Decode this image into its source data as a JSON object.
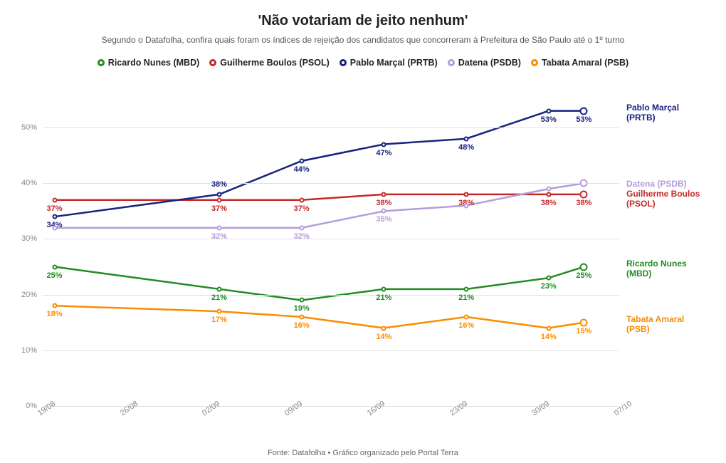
{
  "title": "'Não votariam de jeito nenhum'",
  "subtitle": "Segundo o Datafolha, confira quais foram os índices de rejeição dos candidatos que concorreram à Prefeitura de São Paulo até o 1º turno",
  "footer": "Fonte: Datafolha • Gráfico organizado pelo Portal Terra",
  "chart": {
    "type": "line",
    "background_color": "#ffffff",
    "grid_color": "#e0e0e0",
    "axis_label_color": "#888888",
    "title_fontsize": 20,
    "subtitle_fontsize": 12,
    "legend_fontsize": 12.5,
    "point_label_fontsize": 11,
    "end_label_fontsize": 12,
    "line_width": 2.5,
    "marker_size": 7,
    "last_marker_size": 11,
    "marker_border_width": 2.5,
    "ylim": [
      0,
      55
    ],
    "ytick_step": 10,
    "yticks": [
      0,
      10,
      20,
      30,
      40,
      50
    ],
    "x_positions": [
      1,
      15,
      22,
      29,
      36,
      43,
      46
    ],
    "x_range": [
      0,
      49
    ],
    "xticks": [
      {
        "pos": 0,
        "label": "19/08"
      },
      {
        "pos": 7,
        "label": "26/08"
      },
      {
        "pos": 14,
        "label": "02/09"
      },
      {
        "pos": 21,
        "label": "09/09"
      },
      {
        "pos": 28,
        "label": "16/09"
      },
      {
        "pos": 35,
        "label": "23/09"
      },
      {
        "pos": 42,
        "label": "30/09"
      },
      {
        "pos": 49,
        "label": "07/10"
      }
    ],
    "series": [
      {
        "name": "Ricardo Nunes (MBD)",
        "color": "#228B22",
        "values": [
          25,
          21,
          19,
          21,
          21,
          23,
          25
        ],
        "label_offsets": [
          "below",
          "below",
          "below",
          "below",
          "below",
          "below",
          "below"
        ],
        "end_label_lines": [
          "Ricardo Nunes",
          "(MBD)"
        ]
      },
      {
        "name": "Guilherme Boulos (PSOL)",
        "color": "#c62828",
        "values": [
          37,
          37,
          37,
          38,
          38,
          38,
          38
        ],
        "label_offsets": [
          "below",
          "below",
          "below",
          "below",
          "below",
          "below",
          "below"
        ],
        "end_label_lines": [
          "Guilherme Boulos",
          "(PSOL)"
        ]
      },
      {
        "name": "Pablo Marçal (PRTB)",
        "color": "#1a237e",
        "values": [
          34,
          38,
          44,
          47,
          48,
          53,
          53
        ],
        "label_offsets": [
          "below",
          "above",
          "below",
          "below",
          "below",
          "below",
          "below"
        ],
        "end_label_lines": [
          "Pablo Marçal",
          "(PRTB)"
        ]
      },
      {
        "name": "Datena (PSDB)",
        "color": "#b39ddb",
        "values": [
          32,
          32,
          32,
          35,
          36,
          39,
          40
        ],
        "label_offsets": [
          "none",
          "below",
          "below",
          "below",
          "none",
          "none",
          "none"
        ],
        "end_label_lines": [
          "Datena (PSDB)"
        ]
      },
      {
        "name": "Tabata Amaral (PSB)",
        "color": "#fb8c00",
        "values": [
          18,
          17,
          16,
          14,
          16,
          14,
          15
        ],
        "label_offsets": [
          "below",
          "below",
          "below",
          "below",
          "below",
          "below",
          "below"
        ],
        "end_label_lines": [
          "Tabata Amaral",
          "(PSB)"
        ]
      }
    ],
    "end_label_y_overrides": {
      "Datena (PSDB)": 40,
      "Guilherme Boulos (PSOL)": 37.5,
      "Pablo Marçal (PRTB)": 53,
      "Ricardo Nunes (MBD)": 25,
      "Tabata Amaral (PSB)": 15
    }
  }
}
